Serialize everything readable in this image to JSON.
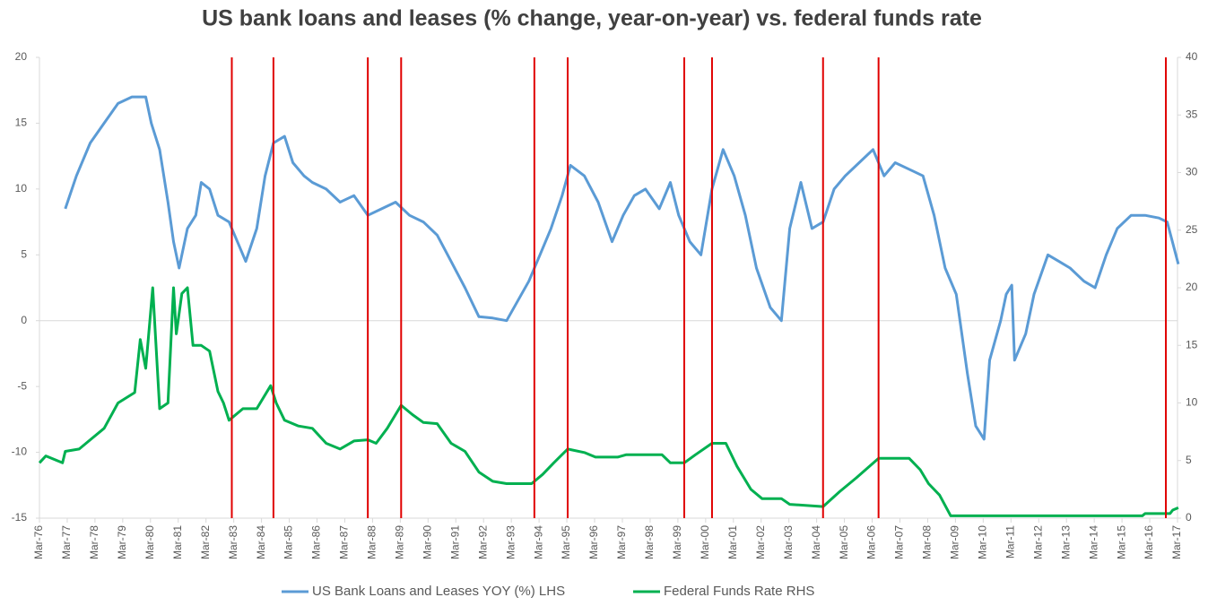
{
  "chart_data": {
    "type": "line",
    "title": "US bank loans and leases (% change, year-on-year) vs. federal funds rate",
    "xlim": [
      1976.17,
      2017.17
    ],
    "xticks": [
      {
        "value": 1976.17,
        "label": "Mar-76"
      },
      {
        "value": 1977.17,
        "label": "Mar-77"
      },
      {
        "value": 1978.17,
        "label": "Mar-78"
      },
      {
        "value": 1979.17,
        "label": "Mar-79"
      },
      {
        "value": 1980.17,
        "label": "Mar-80"
      },
      {
        "value": 1981.17,
        "label": "Mar-81"
      },
      {
        "value": 1982.17,
        "label": "Mar-82"
      },
      {
        "value": 1983.17,
        "label": "Mar-83"
      },
      {
        "value": 1984.17,
        "label": "Mar-84"
      },
      {
        "value": 1985.17,
        "label": "Mar-85"
      },
      {
        "value": 1986.17,
        "label": "Mar-86"
      },
      {
        "value": 1987.17,
        "label": "Mar-87"
      },
      {
        "value": 1988.17,
        "label": "Mar-88"
      },
      {
        "value": 1989.17,
        "label": "Mar-89"
      },
      {
        "value": 1990.17,
        "label": "Mar-90"
      },
      {
        "value": 1991.17,
        "label": "Mar-91"
      },
      {
        "value": 1992.17,
        "label": "Mar-92"
      },
      {
        "value": 1993.17,
        "label": "Mar-93"
      },
      {
        "value": 1994.17,
        "label": "Mar-94"
      },
      {
        "value": 1995.17,
        "label": "Mar-95"
      },
      {
        "value": 1996.17,
        "label": "Mar-96"
      },
      {
        "value": 1997.17,
        "label": "Mar-97"
      },
      {
        "value": 1998.17,
        "label": "Mar-98"
      },
      {
        "value": 1999.17,
        "label": "Mar-99"
      },
      {
        "value": 2000.17,
        "label": "Mar-00"
      },
      {
        "value": 2001.17,
        "label": "Mar-01"
      },
      {
        "value": 2002.17,
        "label": "Mar-02"
      },
      {
        "value": 2003.17,
        "label": "Mar-03"
      },
      {
        "value": 2004.17,
        "label": "Mar-04"
      },
      {
        "value": 2005.17,
        "label": "Mar-05"
      },
      {
        "value": 2006.17,
        "label": "Mar-06"
      },
      {
        "value": 2007.17,
        "label": "Mar-07"
      },
      {
        "value": 2008.17,
        "label": "Mar-08"
      },
      {
        "value": 2009.17,
        "label": "Mar-09"
      },
      {
        "value": 2010.17,
        "label": "Mar-10"
      },
      {
        "value": 2011.17,
        "label": "Mar-11"
      },
      {
        "value": 2012.17,
        "label": "Mar-12"
      },
      {
        "value": 2013.17,
        "label": "Mar-13"
      },
      {
        "value": 2014.17,
        "label": "Mar-14"
      },
      {
        "value": 2015.17,
        "label": "Mar-15"
      },
      {
        "value": 2016.17,
        "label": "Mar-16"
      },
      {
        "value": 2017.17,
        "label": "Mar-17"
      }
    ],
    "ylim": [
      -15,
      20
    ],
    "yticks": [
      -15,
      -10,
      -5,
      0,
      5,
      10,
      15,
      20
    ],
    "y2lim": [
      0,
      40
    ],
    "y2ticks": [
      0,
      5,
      10,
      15,
      20,
      25,
      30,
      35,
      40
    ],
    "legend": "bottom",
    "vlines": [
      1983.1,
      1984.6,
      1988.0,
      1989.2,
      1994.0,
      1995.2,
      1999.4,
      2000.4,
      2004.4,
      2006.4,
      2016.75
    ],
    "vline_color": "#e00000",
    "series": [
      {
        "name": "US Bank Loans and Leases YOY (%) LHS",
        "color": "#5b9bd5",
        "axis": "y",
        "x": [
          1977.1,
          1977.5,
          1978.0,
          1978.5,
          1979.0,
          1979.5,
          1980.0,
          1980.2,
          1980.5,
          1980.8,
          1981.0,
          1981.2,
          1981.5,
          1981.8,
          1982.0,
          1982.3,
          1982.6,
          1983.0,
          1983.3,
          1983.6,
          1984.0,
          1984.3,
          1984.6,
          1985.0,
          1985.3,
          1985.7,
          1986.0,
          1986.5,
          1987.0,
          1987.5,
          1988.0,
          1988.5,
          1989.0,
          1989.5,
          1990.0,
          1990.5,
          1991.0,
          1991.5,
          1992.0,
          1992.5,
          1993.0,
          1993.4,
          1993.8,
          1994.2,
          1994.6,
          1995.0,
          1995.3,
          1995.8,
          1996.3,
          1996.8,
          1997.2,
          1997.6,
          1998.0,
          1998.5,
          1998.9,
          1999.2,
          1999.6,
          2000.0,
          2000.4,
          2000.8,
          2001.2,
          2001.6,
          2002.0,
          2002.5,
          2002.9,
          2003.2,
          2003.6,
          2004.0,
          2004.4,
          2004.8,
          2005.2,
          2005.7,
          2006.2,
          2006.6,
          2007.0,
          2007.5,
          2008.0,
          2008.4,
          2008.8,
          2009.2,
          2009.6,
          2009.9,
          2010.2,
          2010.4,
          2010.8,
          2011.0,
          2011.2,
          2011.3,
          2011.7,
          2012.0,
          2012.5,
          2012.9,
          2013.3,
          2013.8,
          2014.2,
          2014.6,
          2015.0,
          2015.5,
          2016.0,
          2016.5,
          2016.8,
          2017.2
        ],
        "values": [
          8.5,
          11,
          13.5,
          15,
          16.5,
          17,
          17,
          15,
          13,
          9,
          6,
          4,
          7,
          8,
          10.5,
          10,
          8,
          7.5,
          6,
          4.5,
          7,
          11,
          13.5,
          14,
          12,
          11,
          10.5,
          10,
          9,
          9.5,
          8,
          8.5,
          9,
          8,
          7.5,
          6.5,
          4.5,
          2.5,
          0.3,
          0.2,
          0,
          1.5,
          3,
          5,
          7,
          9.5,
          11.8,
          11,
          9,
          6,
          8,
          9.5,
          10,
          8.5,
          10.5,
          8,
          6,
          5,
          10,
          13,
          11,
          8,
          4,
          1,
          0,
          7,
          10.5,
          7,
          7.5,
          10,
          11,
          12,
          13,
          11,
          12,
          11.5,
          11,
          8,
          4,
          2,
          -4,
          -8,
          -9,
          -3,
          0,
          2,
          2.7,
          -3,
          -1,
          2,
          5,
          4.5,
          4,
          3,
          2.5,
          5,
          7,
          8,
          8,
          7.8,
          7.5,
          4.3
        ]
      },
      {
        "name": "Federal Funds Rate RHS",
        "color": "#00b050",
        "axis": "y2",
        "x": [
          1976.17,
          1976.4,
          1977.0,
          1977.1,
          1977.6,
          1978.0,
          1978.5,
          1979.0,
          1979.6,
          1979.8,
          1980.0,
          1980.25,
          1980.5,
          1980.8,
          1981.0,
          1981.1,
          1981.3,
          1981.5,
          1981.7,
          1982.0,
          1982.3,
          1982.6,
          1982.8,
          1983.0,
          1983.5,
          1984.0,
          1984.5,
          1984.7,
          1985.0,
          1985.5,
          1986.0,
          1986.5,
          1987.0,
          1987.5,
          1988.0,
          1988.3,
          1988.7,
          1989.2,
          1989.6,
          1990.0,
          1990.5,
          1991.0,
          1991.5,
          1992.0,
          1992.5,
          1993.0,
          1993.9,
          1994.3,
          1994.7,
          1995.2,
          1995.8,
          1996.2,
          1997.0,
          1997.3,
          1998.6,
          1998.9,
          1999.4,
          1999.8,
          2000.4,
          2000.9,
          2001.3,
          2001.8,
          2002.2,
          2002.9,
          2003.2,
          2004.4,
          2005.0,
          2005.6,
          2006.4,
          2007.5,
          2007.9,
          2008.2,
          2008.6,
          2009.0,
          2015.9,
          2016.0,
          2016.9,
          2017.0,
          2017.2
        ],
        "values": [
          4.8,
          5.4,
          4.8,
          5.8,
          6,
          6.8,
          7.8,
          10,
          10.9,
          15.5,
          13,
          20,
          9.5,
          10,
          20,
          16,
          19.5,
          20,
          15,
          15,
          14.5,
          11,
          10,
          8.5,
          9.5,
          9.5,
          11.5,
          10,
          8.5,
          8,
          7.8,
          6.5,
          6,
          6.7,
          6.8,
          6.5,
          7.8,
          9.8,
          9,
          8.3,
          8.2,
          6.5,
          5.8,
          4,
          3.2,
          3,
          3,
          3.8,
          4.8,
          6,
          5.7,
          5.3,
          5.3,
          5.5,
          5.5,
          4.8,
          4.8,
          5.5,
          6.5,
          6.5,
          4.5,
          2.5,
          1.7,
          1.7,
          1.2,
          1,
          2.3,
          3.5,
          5.2,
          5.2,
          4.2,
          3,
          2,
          0.2,
          0.2,
          0.4,
          0.4,
          0.7,
          0.9
        ]
      }
    ]
  }
}
